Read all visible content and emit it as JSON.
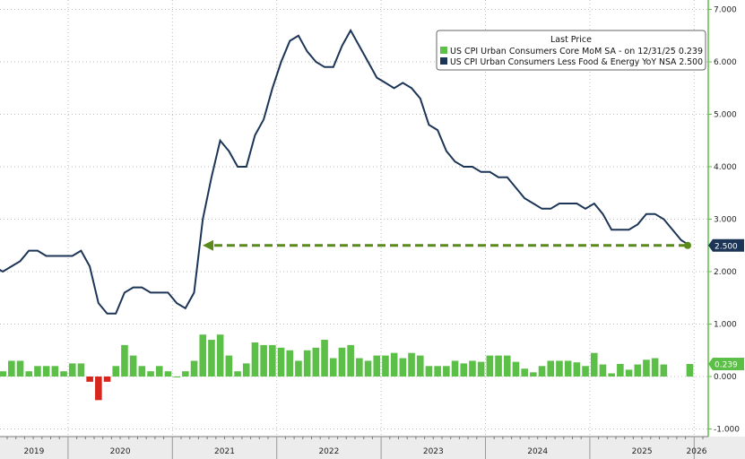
{
  "chart_data": {
    "type": "bar+line",
    "legend": {
      "title": "Last Price",
      "placement": "top-right",
      "entries": [
        {
          "label": "US CPI Urban Consumers Core MoM SA -  on 12/31/25 0.239",
          "color": "#5cbf47"
        },
        {
          "label": "US CPI Urban Consumers Less Food & Energy YoY NSA 2.500",
          "color": "#1c3557"
        }
      ]
    },
    "x_start": "2019-01",
    "x_end": "2025-12",
    "x_tick_labels": [
      "2019",
      "2020",
      "2021",
      "2022",
      "2023",
      "2024",
      "2025",
      "2026"
    ],
    "y_ticks": [
      "-1.000",
      "0.000",
      "1.000",
      "2.000",
      "3.000",
      "4.000",
      "5.000",
      "6.000",
      "7.000"
    ],
    "ylim": [
      -1.1,
      7.1
    ],
    "last_values": {
      "mom": "0.239",
      "yoy": "2.500"
    },
    "series": [
      {
        "name": "US CPI Urban Consumers Core MoM SA",
        "type": "bar",
        "color": "#5cbf47",
        "negative_color": "#d7261e",
        "values": [
          0.2,
          0.1,
          0.1,
          0.1,
          0.1,
          0.3,
          0.3,
          0.1,
          0.2,
          0.2,
          0.2,
          0.1,
          0.25,
          0.25,
          -0.1,
          -0.45,
          -0.1,
          0.2,
          0.6,
          0.4,
          0.2,
          0.1,
          0.2,
          0.1,
          0.0,
          0.1,
          0.3,
          0.8,
          0.7,
          0.8,
          0.4,
          0.1,
          0.25,
          0.65,
          0.6,
          0.6,
          0.55,
          0.5,
          0.3,
          0.5,
          0.55,
          0.7,
          0.35,
          0.55,
          0.6,
          0.35,
          0.3,
          0.4,
          0.4,
          0.45,
          0.35,
          0.45,
          0.4,
          0.2,
          0.2,
          0.2,
          0.3,
          0.25,
          0.3,
          0.28,
          0.4,
          0.4,
          0.4,
          0.28,
          0.15,
          0.08,
          0.2,
          0.3,
          0.3,
          0.3,
          0.27,
          0.2,
          0.45,
          0.23,
          0.06,
          0.24,
          0.13,
          0.23,
          0.32,
          0.35,
          0.23,
          null,
          null,
          0.239
        ]
      },
      {
        "name": "US CPI Urban Consumers Less Food & Energy YoY NSA",
        "type": "line",
        "color": "#1c3557",
        "values": [
          2.2,
          2.1,
          2.0,
          2.1,
          2.0,
          2.1,
          2.2,
          2.4,
          2.4,
          2.3,
          2.3,
          2.3,
          2.3,
          2.4,
          2.1,
          1.4,
          1.2,
          1.2,
          1.6,
          1.7,
          1.7,
          1.6,
          1.6,
          1.6,
          1.4,
          1.3,
          1.6,
          3.0,
          3.8,
          4.5,
          4.3,
          4.0,
          4.0,
          4.6,
          4.9,
          5.5,
          6.0,
          6.4,
          6.5,
          6.2,
          6.0,
          5.9,
          5.9,
          6.3,
          6.6,
          6.3,
          6.0,
          5.7,
          5.6,
          5.5,
          5.6,
          5.5,
          5.3,
          4.8,
          4.7,
          4.3,
          4.1,
          4.0,
          4.0,
          3.9,
          3.9,
          3.8,
          3.8,
          3.6,
          3.4,
          3.3,
          3.2,
          3.2,
          3.3,
          3.3,
          3.3,
          3.2,
          3.3,
          3.1,
          2.8,
          2.8,
          2.8,
          2.9,
          3.1,
          3.1,
          3.0,
          null,
          2.6,
          2.5
        ]
      }
    ],
    "annotation": "dashed arrow at 2.5 pointing left to early 2021 level"
  }
}
